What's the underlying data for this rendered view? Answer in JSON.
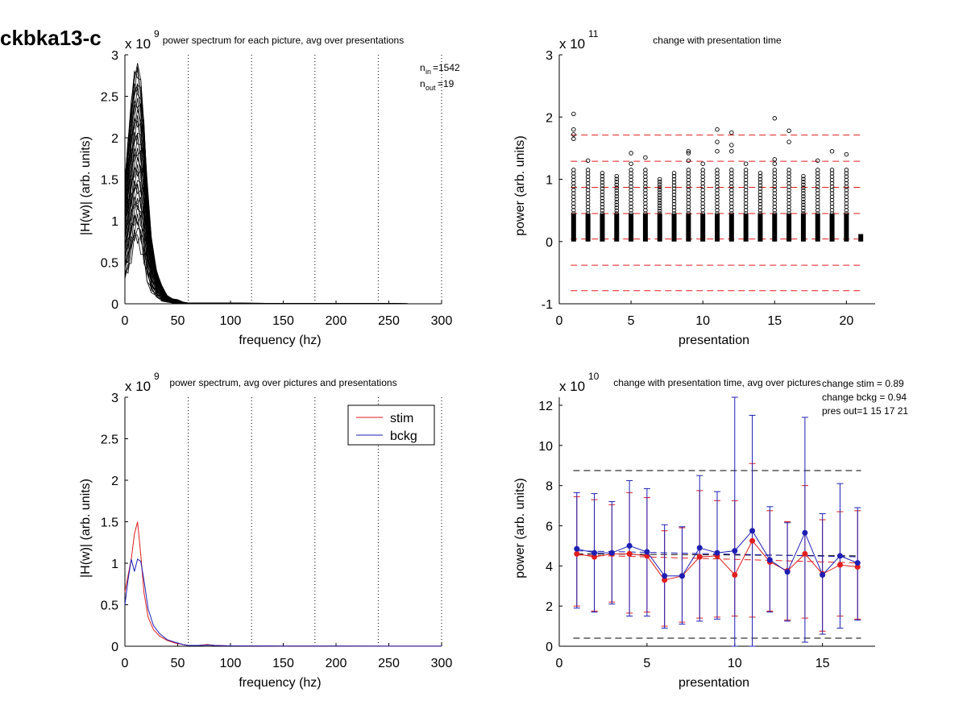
{
  "figure_title": "ckbka13-c",
  "chart_data": [
    {
      "id": "p1",
      "type": "line",
      "title": "power spectrum for each picture, avg over presentations",
      "xlabel": "frequency (hz)",
      "ylabel": "|H(w)| (arb. units)",
      "multiplier": "x 10",
      "multiplier_exp": "9",
      "xlim": [
        0,
        300
      ],
      "ylim": [
        0,
        3
      ],
      "xticks": [
        "0",
        "50",
        "100",
        "150",
        "200",
        "250",
        "300"
      ],
      "yticks": [
        "0",
        "0.5",
        "1",
        "1.5",
        "2",
        "2.5",
        "3"
      ],
      "vlines": [
        60,
        120,
        180,
        240,
        300
      ],
      "annotation": {
        "n_in_label": "n",
        "n_in_sub": "in",
        "n_in_value": "=1542",
        "n_out_label": "n",
        "n_out_sub": "out",
        "n_out_value": "=19"
      },
      "color": "#000000",
      "x": [
        0,
        3,
        6,
        9,
        12,
        15,
        18,
        21,
        25,
        30,
        35,
        40,
        45,
        50,
        55,
        60,
        70,
        100,
        150,
        200,
        250,
        300
      ],
      "envelope_upper": [
        1.5,
        2.0,
        2.45,
        2.8,
        2.9,
        2.7,
        2.2,
        1.5,
        0.8,
        0.4,
        0.22,
        0.1,
        0.06,
        0.05,
        0.02,
        0.01,
        0.01,
        0.008,
        0.005,
        0.003,
        0.002,
        0.001
      ],
      "envelope_lower": [
        0.3,
        0.4,
        0.6,
        0.75,
        0.8,
        0.7,
        0.5,
        0.3,
        0.15,
        0.08,
        0.04,
        0.02,
        0.01,
        0.005,
        0.002,
        0.001,
        0.001,
        0.001,
        0.001,
        0.001,
        0.001,
        0.001
      ],
      "n_curves": 40
    },
    {
      "id": "p2",
      "type": "scatter",
      "title": "change with presentation time",
      "xlabel": "presentation",
      "ylabel": "power (arb. units)",
      "multiplier": "x 10",
      "multiplier_exp": "11",
      "xlim": [
        0,
        22
      ],
      "ylim": [
        -1,
        3
      ],
      "xticks": [
        "0",
        "5",
        "10",
        "15",
        "20"
      ],
      "yticks": [
        "-1",
        "0",
        "1",
        "2",
        "3"
      ],
      "hlines": [
        -0.79,
        -0.38,
        0.04,
        0.45,
        0.87,
        1.29,
        1.71
      ],
      "hline_color": "#e01e1e",
      "columns": [
        {
          "x": 1,
          "max": 2.05,
          "outliers": [
            1.65,
            1.72,
            1.8,
            2.05
          ]
        },
        {
          "x": 2,
          "max": 1.3,
          "outliers": [
            1.3
          ]
        },
        {
          "x": 3,
          "max": 1.1,
          "outliers": []
        },
        {
          "x": 4,
          "max": 1.05,
          "outliers": []
        },
        {
          "x": 5,
          "max": 1.42,
          "outliers": [
            1.25,
            1.42
          ]
        },
        {
          "x": 6,
          "max": 1.35,
          "outliers": [
            1.35
          ]
        },
        {
          "x": 7,
          "max": 1.0,
          "outliers": []
        },
        {
          "x": 8,
          "max": 1.1,
          "outliers": []
        },
        {
          "x": 9,
          "max": 1.45,
          "outliers": [
            1.3,
            1.42,
            1.45
          ]
        },
        {
          "x": 10,
          "max": 1.25,
          "outliers": [
            1.25
          ]
        },
        {
          "x": 11,
          "max": 1.8,
          "outliers": [
            1.45,
            1.6,
            1.8
          ]
        },
        {
          "x": 12,
          "max": 1.75,
          "outliers": [
            1.45,
            1.55,
            1.75
          ]
        },
        {
          "x": 13,
          "max": 1.25,
          "outliers": [
            1.25
          ]
        },
        {
          "x": 14,
          "max": 1.1,
          "outliers": []
        },
        {
          "x": 15,
          "max": 1.98,
          "outliers": [
            1.25,
            1.32,
            1.98
          ]
        },
        {
          "x": 16,
          "max": 1.78,
          "outliers": [
            1.6,
            1.78
          ]
        },
        {
          "x": 17,
          "max": 1.05,
          "outliers": []
        },
        {
          "x": 18,
          "max": 1.3,
          "outliers": [
            1.3
          ]
        },
        {
          "x": 19,
          "max": 1.45,
          "outliers": [
            1.45
          ]
        },
        {
          "x": 20,
          "max": 1.4,
          "outliers": [
            1.4
          ]
        },
        {
          "x": 21,
          "max": 0.12,
          "outliers": []
        }
      ],
      "dense_min": 0.0,
      "dense_max": 0.45
    },
    {
      "id": "p3",
      "type": "line",
      "title": "power spectrum, avg over pictures and presentations",
      "xlabel": "frequency (hz)",
      "ylabel": "|H(w)| (arb. units)",
      "multiplier": "x 10",
      "multiplier_exp": "9",
      "xlim": [
        0,
        300
      ],
      "ylim": [
        0,
        3
      ],
      "xticks": [
        "0",
        "50",
        "100",
        "150",
        "200",
        "250",
        "300"
      ],
      "yticks": [
        "0",
        "0.5",
        "1",
        "1.5",
        "2",
        "2.5",
        "3"
      ],
      "vlines": [
        60,
        120,
        180,
        240,
        300
      ],
      "legend": [
        "stim",
        "bckg"
      ],
      "series": [
        {
          "name": "stim",
          "color": "#e01e1e",
          "x": [
            0,
            3,
            6,
            9,
            12,
            15,
            18,
            22,
            27,
            33,
            40,
            47,
            55,
            60,
            70,
            78,
            85,
            100,
            150,
            200,
            250,
            300
          ],
          "y": [
            0.65,
            0.85,
            1.05,
            1.35,
            1.5,
            1.1,
            0.65,
            0.35,
            0.2,
            0.12,
            0.07,
            0.04,
            0.02,
            0.01,
            0.01,
            0.02,
            0.01,
            0.005,
            0.003,
            0.002,
            0.001,
            0.001
          ]
        },
        {
          "name": "bckg",
          "color": "#1e1eb4",
          "x": [
            0,
            3,
            6,
            9,
            12,
            15,
            18,
            22,
            27,
            33,
            40,
            47,
            55,
            60,
            70,
            78,
            85,
            100,
            150,
            200,
            250,
            300
          ],
          "y": [
            0.5,
            0.8,
            1.05,
            0.9,
            1.05,
            1.02,
            0.8,
            0.45,
            0.25,
            0.15,
            0.08,
            0.05,
            0.02,
            0.01,
            0.01,
            0.015,
            0.01,
            0.005,
            0.003,
            0.002,
            0.001,
            0.001
          ]
        }
      ]
    },
    {
      "id": "p4",
      "type": "line",
      "title": "change with presentation time, avg over pictures",
      "xlabel": "presentation",
      "ylabel": "power (arb. units)",
      "multiplier": "x 10",
      "multiplier_exp": "10",
      "xlim": [
        0,
        18
      ],
      "ylim": [
        0,
        12.4
      ],
      "xticks": [
        "0",
        "5",
        "10",
        "15"
      ],
      "yticks": [
        "0",
        "2",
        "4",
        "6",
        "8",
        "10",
        "12"
      ],
      "notes": [
        "change stim = 0.89",
        "change bckg = 0.94",
        "pres out=1 15 17 21"
      ],
      "hlines": [
        0.4,
        8.75
      ],
      "hline_color": "#000000",
      "x": [
        1,
        2,
        3,
        4,
        5,
        6,
        7,
        8,
        9,
        10,
        11,
        12,
        13,
        14,
        15,
        16,
        17
      ],
      "series": [
        {
          "name": "stim",
          "color": "#e01e1e",
          "values": [
            4.6,
            4.45,
            4.6,
            4.6,
            4.5,
            3.3,
            3.5,
            4.45,
            4.5,
            3.55,
            5.25,
            4.2,
            3.75,
            4.6,
            3.6,
            4.05,
            3.95
          ],
          "err_low": [
            2.0,
            1.75,
            2.2,
            1.65,
            1.7,
            1.0,
            1.2,
            1.4,
            1.45,
            1.5,
            1.45,
            1.75,
            1.3,
            1.4,
            0.75,
            1.5,
            1.35
          ],
          "err_high": [
            7.45,
            7.3,
            7.05,
            7.65,
            7.4,
            5.75,
            5.9,
            7.75,
            7.25,
            7.25,
            9.1,
            6.75,
            6.2,
            8.0,
            6.3,
            6.7,
            6.75
          ],
          "trend": [
            4.55,
            4.15
          ]
        },
        {
          "name": "bckg",
          "color": "#1e1eb4",
          "values": [
            4.85,
            4.65,
            4.65,
            5.0,
            4.7,
            3.5,
            3.5,
            4.9,
            4.65,
            4.75,
            5.75,
            4.3,
            3.7,
            5.65,
            3.55,
            4.5,
            4.15
          ],
          "err_low": [
            1.9,
            1.7,
            2.1,
            1.5,
            1.5,
            0.9,
            1.1,
            1.25,
            1.35,
            0.0,
            0.0,
            1.7,
            1.25,
            0.2,
            0.6,
            0.9,
            1.3
          ],
          "err_high": [
            7.65,
            7.6,
            7.2,
            8.25,
            7.85,
            6.05,
            5.95,
            8.5,
            7.7,
            12.4,
            11.5,
            6.95,
            6.15,
            11.4,
            6.6,
            8.1,
            6.9
          ],
          "trend": [
            4.75,
            4.45
          ]
        }
      ],
      "mean_line": [
        4.6,
        4.5
      ]
    }
  ]
}
